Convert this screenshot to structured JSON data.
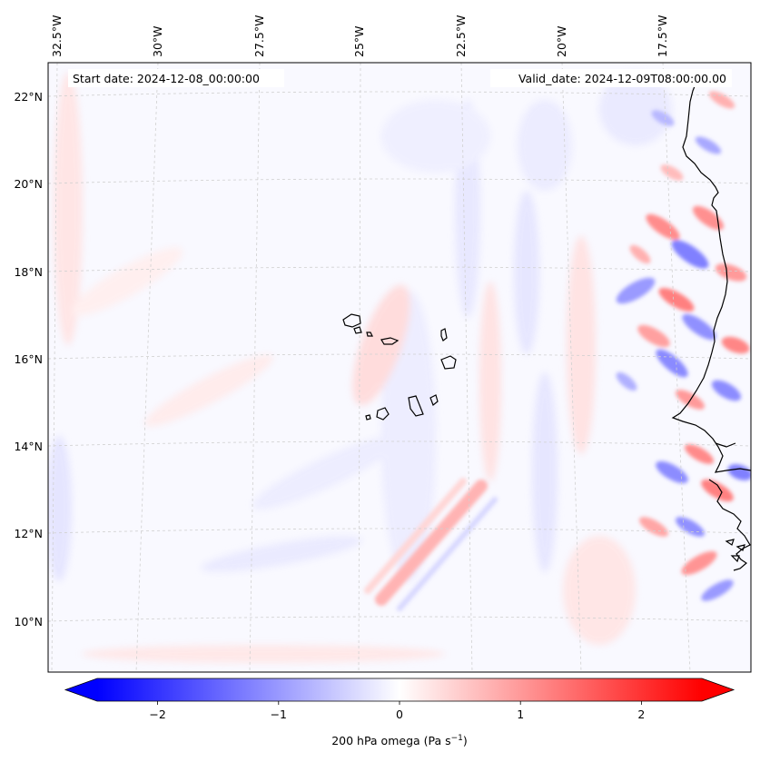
{
  "map": {
    "start_label": "Start date: 2024-12-08_00:00:00",
    "valid_label": "Valid_date: 2024-12-09T08:00:00.00",
    "lon_labels": [
      "32.5°W",
      "30°W",
      "27.5°W",
      "25°W",
      "22.5°W",
      "20°W",
      "17.5°W"
    ],
    "lat_labels": [
      "22°N",
      "20°N",
      "18°N",
      "16°N",
      "14°N",
      "12°N",
      "10°N"
    ],
    "grid_style": "dashed",
    "field": "omega at 200 hPa",
    "colormap": "bwr"
  },
  "colorbar": {
    "ticks": [
      "−2",
      "−1",
      "0",
      "1",
      "2"
    ],
    "tick_values": [
      -2,
      -1,
      0,
      1,
      2
    ],
    "range": [
      -2.5,
      2.5
    ],
    "label_main": "200 hPa omega (Pa s",
    "label_exp": "−1",
    "label_end": ")",
    "extend": "both",
    "negative_color": "#0000ff",
    "zero_color": "#ffffff",
    "positive_color": "#ff0000"
  }
}
